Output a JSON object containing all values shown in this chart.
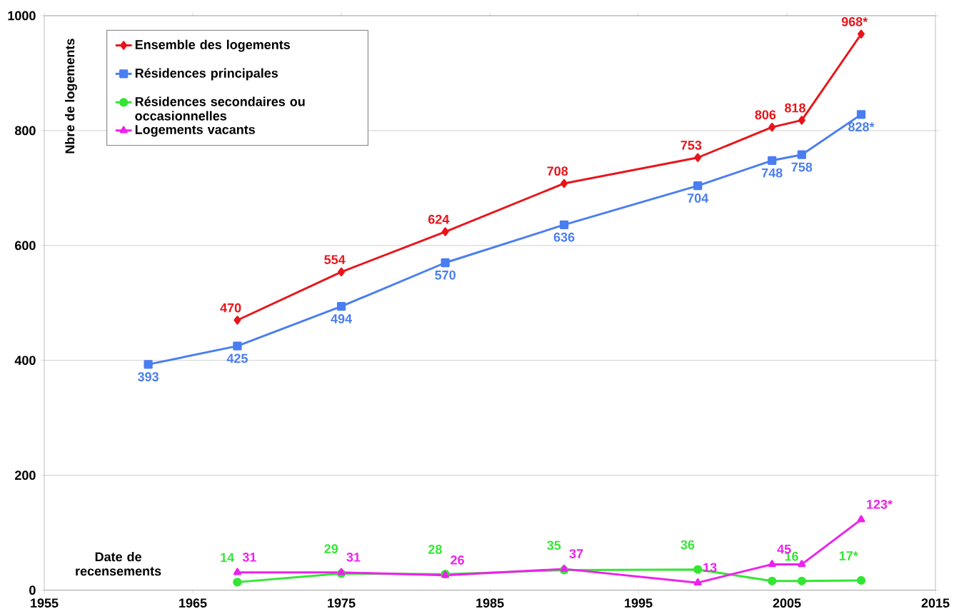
{
  "chart_data": {
    "type": "line",
    "xlabel": "Date de recensements",
    "ylabel": "Nbre de logements",
    "xlim": [
      1955,
      2015
    ],
    "xticks": [
      1955,
      1965,
      1975,
      1985,
      1995,
      2005,
      2015
    ],
    "ylim": [
      0,
      1000
    ],
    "yticks": [
      0,
      200,
      400,
      600,
      800,
      1000
    ],
    "grid": "y",
    "legend": "top left",
    "line_style": "solid",
    "series": [
      {
        "name": "Ensemble des logements",
        "color": "#e8141a",
        "marker": "diamond",
        "x": [
          1968,
          1975,
          1982,
          1990,
          1999,
          2004,
          2006,
          2010
        ],
        "values": [
          470,
          554,
          624,
          708,
          753,
          806,
          818,
          968
        ],
        "value_labels": [
          "470",
          "554",
          "624",
          "708",
          "753",
          "806",
          "818",
          "968*"
        ]
      },
      {
        "name": "Résidences principales",
        "color": "#4a7ef0",
        "marker": "square",
        "x": [
          1962,
          1968,
          1975,
          1982,
          1990,
          1999,
          2004,
          2006,
          2010
        ],
        "values": [
          393,
          425,
          494,
          570,
          636,
          704,
          748,
          758,
          828
        ],
        "value_labels": [
          "393",
          "425",
          "494",
          "570",
          "636",
          "704",
          "748",
          "758",
          "828*"
        ]
      },
      {
        "name": "Résidences secondaires ou occasionnelles",
        "color": "#33e633",
        "marker": "circle",
        "x": [
          1968,
          1975,
          1982,
          1990,
          1999,
          2004,
          2006,
          2010
        ],
        "values": [
          14,
          29,
          28,
          35,
          36,
          16,
          16,
          17
        ],
        "value_labels": [
          "14",
          "29",
          "28",
          "35",
          "36",
          null,
          "16",
          "17*"
        ]
      },
      {
        "name": "Logements vacants",
        "color": "#ee20ee",
        "marker": "triangle",
        "x": [
          1968,
          1975,
          1982,
          1990,
          1999,
          2004,
          2006,
          2010
        ],
        "values": [
          31,
          31,
          26,
          37,
          13,
          45,
          45,
          123
        ],
        "value_labels": [
          "31",
          "31",
          "26",
          "37",
          "13",
          "45",
          null,
          "123*"
        ]
      }
    ]
  }
}
